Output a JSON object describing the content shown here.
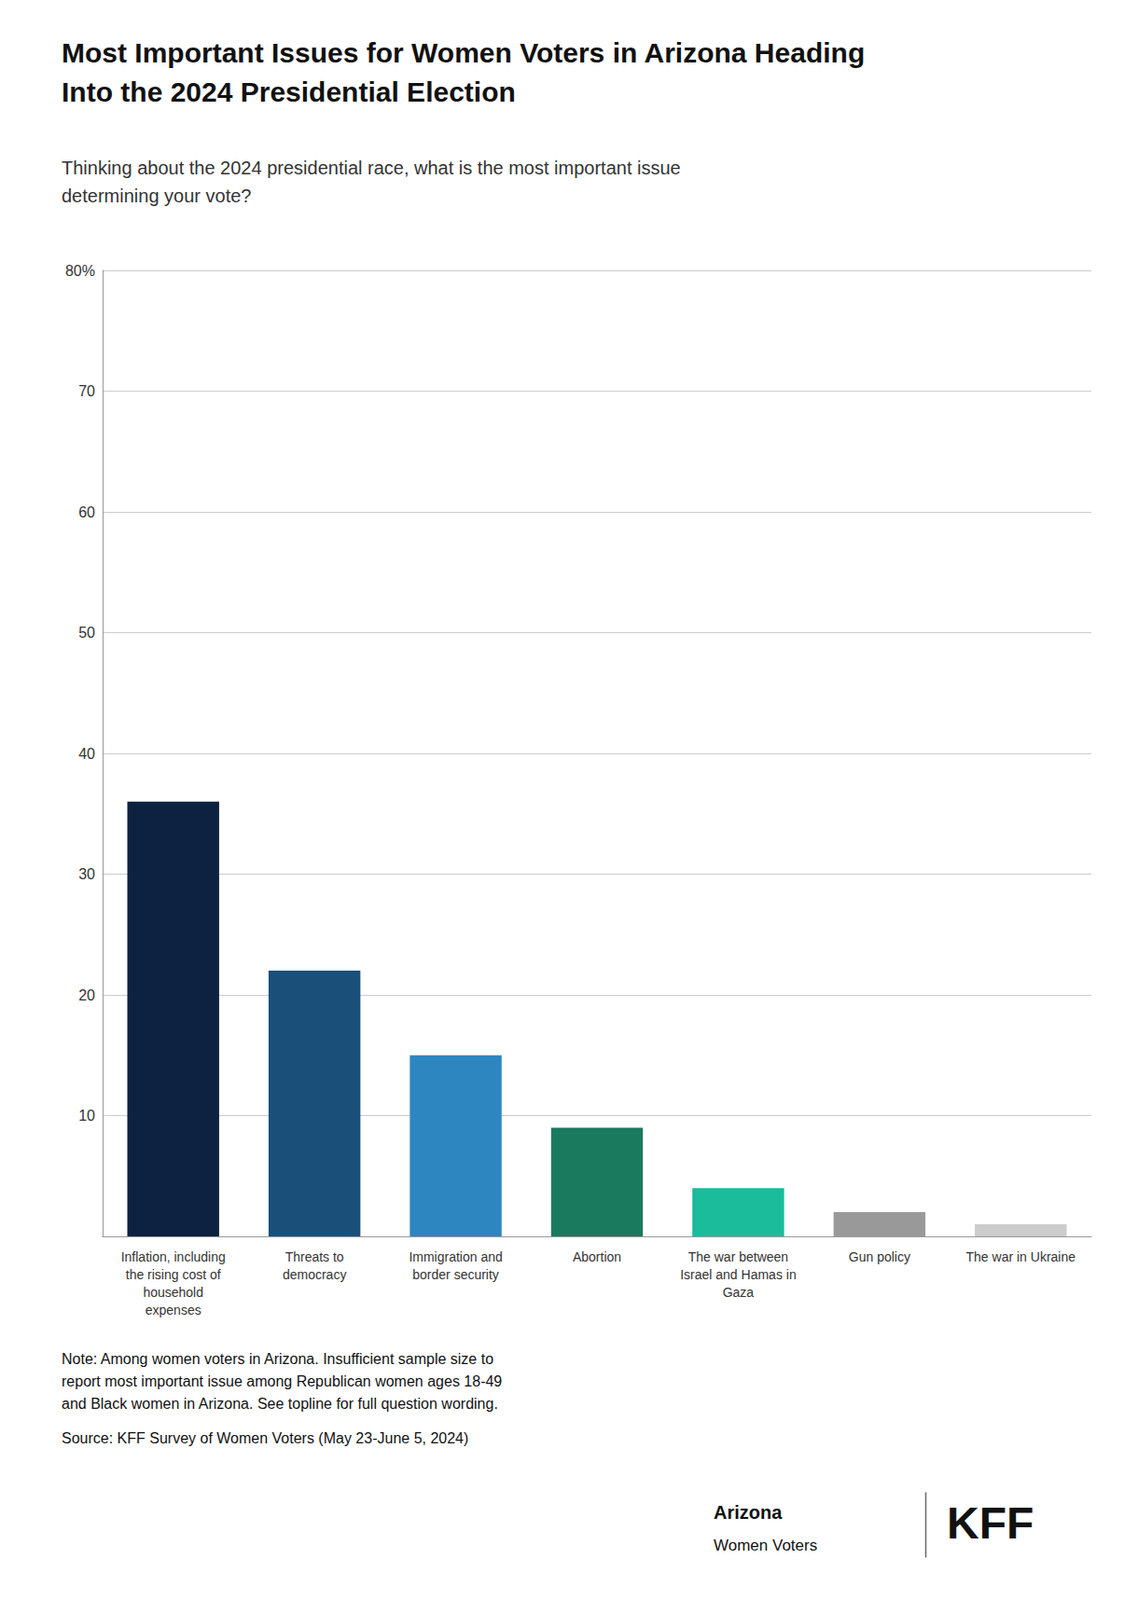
{
  "chart_data": {
    "type": "bar",
    "title": "Most Important Issues for Women Voters in Arizona Heading\nInto the 2024 Presidential Election",
    "subtitle": "Thinking about the 2024 presidential race, what is the most important issue\ndetermining your vote?",
    "categories": [
      "Inflation, including\nthe rising cost of\nhousehold\nexpenses",
      "Threats to\ndemocracy",
      "Immigration and\nborder security",
      "Abortion",
      "The war between\nIsrael and Hamas in\nGaza",
      "Gun policy",
      "The war in Ukraine"
    ],
    "values": [
      36,
      22,
      15,
      9,
      4,
      2,
      1
    ],
    "colors": [
      "#0d2240",
      "#1a4f7a",
      "#2e86c1",
      "#1a7a5e",
      "#1abc9c",
      "#999999",
      "#cccccc"
    ],
    "ylim": [
      0,
      80
    ],
    "yticks": [
      10,
      20,
      30,
      40,
      50,
      60,
      70,
      {
        "value": 80,
        "label": "80%"
      }
    ],
    "grid": true,
    "annotations": [
      "Note: Among women voters in Arizona. Insufficient sample size to\nreport most important issue among Republican women ages 18-49\nand Black women in Arizona. See topline for full question wording.",
      "Source: KFF Survey of Women Voters (May 23-June 5, 2024)",
      "Arizona",
      "Women Voters",
      "KFF"
    ]
  }
}
